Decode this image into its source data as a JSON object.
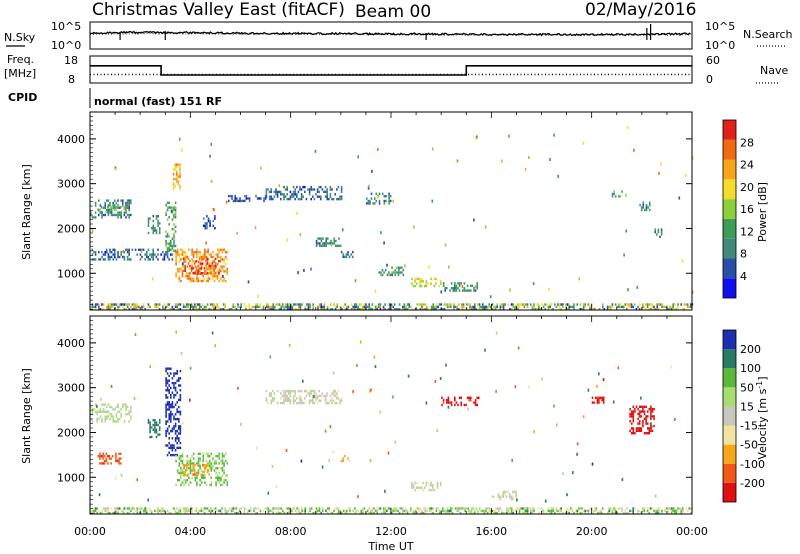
{
  "header": {
    "title": "Christmas Valley East (fitACF)",
    "beam": "Beam 00",
    "date": "02/May/2016"
  },
  "noise_panel": {
    "left_label": "N.Sky",
    "right_label": "N.Search",
    "left_ticks": [
      "10^5",
      "10^0"
    ],
    "right_ticks": [
      "10^5",
      "10^0"
    ]
  },
  "freq_panel": {
    "left_label_1": "Freq.",
    "left_label_2": "[MHz]",
    "right_label": "Nave",
    "left_ticks": [
      "18",
      "8"
    ],
    "right_ticks": [
      "60",
      "0"
    ]
  },
  "cpid": {
    "label": "CPID",
    "value": "normal (fast) 151 RF"
  },
  "colors": {
    "power_scale": [
      "#1010ee",
      "#2a4da8",
      "#3f8a7a",
      "#3e9e55",
      "#8ccf3c",
      "#f4dd2a",
      "#f7a51b",
      "#f06a14",
      "#e0201a"
    ],
    "velocity_scale": [
      "#e01010",
      "#f05a16",
      "#f7a51b",
      "#f0e2a0",
      "#c8c8bc",
      "#a8de70",
      "#5cb83a",
      "#2a7a66",
      "#1c2fae"
    ]
  },
  "chart_data": [
    {
      "type": "line",
      "name": "noise",
      "series": [
        {
          "name": "N.Sky",
          "x": [
            "00:00",
            "02:00",
            "04:00",
            "06:00",
            "08:00",
            "10:00",
            "12:00",
            "14:00",
            "16:00",
            "18:00",
            "20:00",
            "22:00",
            "24:00"
          ],
          "values": [
            900,
            1400,
            1200,
            900,
            800,
            750,
            650,
            600,
            520,
            500,
            480,
            520,
            700
          ]
        },
        {
          "name": "N.Search",
          "x": [
            "00:00",
            "04:00",
            "08:00",
            "12:00",
            "16:00",
            "20:00",
            "24:00"
          ],
          "values": [
            600,
            700,
            550,
            450,
            400,
            380,
            420
          ]
        }
      ],
      "ylim": [
        1,
        100000
      ],
      "yscale": "log"
    },
    {
      "type": "line",
      "name": "frequency",
      "series": [
        {
          "name": "Freq.",
          "x": [
            "00:00",
            "02:50",
            "02:50",
            "15:00",
            "15:00",
            "24:00"
          ],
          "values": [
            14.5,
            14.5,
            10.8,
            10.8,
            14.5,
            14.5
          ]
        },
        {
          "name": "Nave",
          "x": [
            "00:00",
            "24:00"
          ],
          "values": [
            18,
            18
          ]
        }
      ],
      "ylim": [
        8,
        18
      ],
      "y2lim": [
        0,
        60
      ]
    },
    {
      "type": "heatmap",
      "name": "power",
      "xlabel": "",
      "ylabel": "Slant Range [km]",
      "y_ticks": [
        "1000",
        "2000",
        "3000",
        "4000"
      ],
      "ylim": [
        180,
        4600
      ],
      "colorbar_label": "Power [dB]",
      "colorbar_ticks": [
        "4",
        "8",
        "12",
        "16",
        "20",
        "24",
        "28"
      ],
      "colorbar_range": [
        0,
        32
      ],
      "clusters": [
        {
          "t0": 0.0,
          "t1": 1.6,
          "r0": 2250,
          "r1": 2650,
          "value": 9
        },
        {
          "t0": 0.3,
          "t1": 1.2,
          "r0": 2350,
          "r1": 2500,
          "value": 13
        },
        {
          "t0": 0.0,
          "t1": 3.3,
          "r0": 1300,
          "r1": 1550,
          "value": 7
        },
        {
          "t0": 2.3,
          "t1": 2.8,
          "r0": 1900,
          "r1": 2300,
          "value": 10
        },
        {
          "t0": 3.0,
          "t1": 3.4,
          "r0": 1500,
          "r1": 2600,
          "value": 12
        },
        {
          "t0": 3.3,
          "t1": 3.6,
          "r0": 2900,
          "r1": 3450,
          "value": 22
        },
        {
          "t0": 3.4,
          "t1": 5.5,
          "r0": 850,
          "r1": 1550,
          "value": 24
        },
        {
          "t0": 3.7,
          "t1": 5.2,
          "r0": 1000,
          "r1": 1350,
          "value": 28
        },
        {
          "t0": 4.5,
          "t1": 5.0,
          "r0": 2000,
          "r1": 2300,
          "value": 6
        },
        {
          "t0": 5.5,
          "t1": 7.0,
          "r0": 2600,
          "r1": 2750,
          "value": 6
        },
        {
          "t0": 7.0,
          "t1": 10.0,
          "r0": 2650,
          "r1": 2950,
          "value": 7
        },
        {
          "t0": 9.0,
          "t1": 10.0,
          "r0": 1600,
          "r1": 1800,
          "value": 9
        },
        {
          "t0": 10.0,
          "t1": 10.5,
          "r0": 1350,
          "r1": 1500,
          "value": 8
        },
        {
          "t0": 11.5,
          "t1": 12.5,
          "r0": 950,
          "r1": 1150,
          "value": 11
        },
        {
          "t0": 12.8,
          "t1": 14.0,
          "r0": 700,
          "r1": 900,
          "value": 18
        },
        {
          "t0": 14.0,
          "t1": 15.5,
          "r0": 600,
          "r1": 800,
          "value": 10
        },
        {
          "t0": 11.0,
          "t1": 12.0,
          "r0": 2550,
          "r1": 2800,
          "value": 9
        },
        {
          "t0": 20.8,
          "t1": 21.2,
          "r0": 2700,
          "r1": 2850,
          "value": 11
        },
        {
          "t0": 21.9,
          "t1": 22.3,
          "r0": 2400,
          "r1": 2600,
          "value": 9
        },
        {
          "t0": 22.5,
          "t1": 22.8,
          "r0": 1800,
          "r1": 2000,
          "value": 10
        },
        {
          "t0": 0.0,
          "t1": 24.0,
          "r0": 200,
          "r1": 330,
          "value": 14
        }
      ]
    },
    {
      "type": "heatmap",
      "name": "velocity",
      "xlabel": "Time UT",
      "ylabel": "Slant Range [km]",
      "x_ticks": [
        "00:00",
        "04:00",
        "08:00",
        "12:00",
        "16:00",
        "20:00",
        "00:00"
      ],
      "y_ticks": [
        "1000",
        "2000",
        "3000",
        "4000"
      ],
      "ylim": [
        180,
        4600
      ],
      "colorbar_label": "Velocity [m s^-1]",
      "colorbar_ticks": [
        "-200",
        "-100",
        "-50",
        "-15",
        "15",
        "50",
        "100",
        "200"
      ],
      "clusters": [
        {
          "t0": 0.0,
          "t1": 1.6,
          "r0": 2250,
          "r1": 2650,
          "value": 20
        },
        {
          "t0": 0.3,
          "t1": 1.2,
          "r0": 1300,
          "r1": 1550,
          "value": -180
        },
        {
          "t0": 2.3,
          "t1": 2.8,
          "r0": 1900,
          "r1": 2300,
          "value": 150
        },
        {
          "t0": 3.0,
          "t1": 3.6,
          "r0": 1500,
          "r1": 3450,
          "value": 230
        },
        {
          "t0": 3.4,
          "t1": 5.5,
          "r0": 850,
          "r1": 1550,
          "value": 60
        },
        {
          "t0": 3.7,
          "t1": 4.8,
          "r0": 1050,
          "r1": 1300,
          "value": -80
        },
        {
          "t0": 7.0,
          "t1": 10.0,
          "r0": 2650,
          "r1": 2950,
          "value": 0
        },
        {
          "t0": 10.0,
          "t1": 10.5,
          "r0": 1350,
          "r1": 1500,
          "value": -60
        },
        {
          "t0": 12.8,
          "t1": 14.0,
          "r0": 700,
          "r1": 900,
          "value": 0
        },
        {
          "t0": 16.0,
          "t1": 17.0,
          "r0": 500,
          "r1": 700,
          "value": 0
        },
        {
          "t0": 14.0,
          "t1": 15.5,
          "r0": 2600,
          "r1": 2800,
          "value": -220
        },
        {
          "t0": 20.0,
          "t1": 20.5,
          "r0": 2650,
          "r1": 2800,
          "value": -220
        },
        {
          "t0": 21.5,
          "t1": 22.5,
          "r0": 2000,
          "r1": 2600,
          "value": -230
        },
        {
          "t0": 0.0,
          "t1": 24.0,
          "r0": 200,
          "r1": 330,
          "value": 30
        }
      ]
    }
  ]
}
